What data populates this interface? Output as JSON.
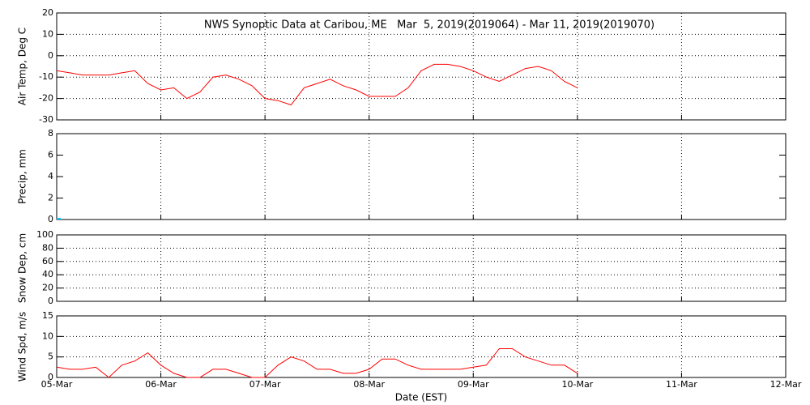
{
  "chart_data": [
    {
      "type": "line",
      "title": "NWS Synoptic Data at Caribou, ME   Mar  5, 2019(2019064) - Mar 11, 2019(2019070)",
      "y_label": "Air Temp, Deg C",
      "x": [
        0,
        3,
        6,
        9,
        12,
        15,
        18,
        21,
        24,
        27,
        30,
        33,
        36,
        39,
        42,
        45,
        48,
        51,
        54,
        57,
        60,
        63,
        66,
        69,
        72,
        75,
        78,
        81,
        84,
        87,
        90,
        93,
        96,
        99,
        102,
        105,
        108,
        111,
        114,
        117,
        120
      ],
      "series": [
        {
          "color": "#ff0000",
          "values": [
            -7,
            -8,
            -9,
            -9,
            -9,
            -8,
            -7,
            -13,
            -16,
            -15,
            -20,
            -17,
            -10,
            -9,
            -11,
            -14,
            -20,
            -21,
            -23,
            -15,
            -13,
            -11,
            -14,
            -16,
            -19,
            -19,
            -19,
            -15,
            -7,
            -4,
            -4,
            -5,
            -7,
            -10,
            -12,
            -9,
            -6,
            -5,
            -7,
            -12,
            -15
          ]
        }
      ],
      "xlim": [
        0,
        168
      ],
      "xticks": [
        0,
        24,
        48,
        72,
        96,
        120,
        144,
        168
      ],
      "ylim": [
        -30,
        20
      ],
      "yticks": [
        -30,
        -20,
        -10,
        0,
        10,
        20
      ],
      "grid": "both"
    },
    {
      "type": "line",
      "y_label": "Precip, mm",
      "x": [
        0
      ],
      "series": [
        {
          "color": "#00c8ff",
          "values": [
            0
          ]
        }
      ],
      "xlim": [
        0,
        168
      ],
      "xticks": [
        0,
        24,
        48,
        72,
        96,
        120,
        144,
        168
      ],
      "ylim": [
        0,
        8
      ],
      "yticks": [
        0,
        2,
        4,
        6,
        8
      ],
      "grid": "x"
    },
    {
      "type": "line",
      "y_label": "Snow Dep, cm",
      "x": [],
      "series": [],
      "xlim": [
        0,
        168
      ],
      "xticks": [
        0,
        24,
        48,
        72,
        96,
        120,
        144,
        168
      ],
      "ylim": [
        0,
        100
      ],
      "yticks": [
        0,
        20,
        40,
        60,
        80,
        100
      ],
      "grid": "both"
    },
    {
      "type": "line",
      "y_label": "Wind Spd, m/s",
      "x_label": "Date (EST)",
      "x": [
        0,
        3,
        6,
        9,
        12,
        15,
        18,
        21,
        24,
        27,
        30,
        33,
        36,
        39,
        42,
        45,
        48,
        51,
        54,
        57,
        60,
        63,
        66,
        69,
        72,
        75,
        78,
        81,
        84,
        87,
        90,
        93,
        96,
        99,
        102,
        105,
        108,
        111,
        114,
        117,
        120
      ],
      "series": [
        {
          "color": "#ff0000",
          "values": [
            2.5,
            2,
            2,
            2.5,
            0,
            3,
            4,
            6,
            3,
            1,
            0,
            0,
            2,
            2,
            1,
            0,
            0,
            3,
            5,
            4,
            2,
            2,
            1,
            1,
            2,
            4.5,
            4.5,
            3,
            2,
            2,
            2,
            2,
            2.5,
            3,
            7,
            7,
            5,
            4,
            3,
            3,
            1
          ]
        }
      ],
      "xlim": [
        0,
        168
      ],
      "xticks": [
        {
          "value": 0,
          "label": "05-Mar"
        },
        {
          "value": 24,
          "label": "06-Mar"
        },
        {
          "value": 48,
          "label": "07-Mar"
        },
        {
          "value": 72,
          "label": "08-Mar"
        },
        {
          "value": 96,
          "label": "09-Mar"
        },
        {
          "value": 120,
          "label": "10-Mar"
        },
        {
          "value": 144,
          "label": "11-Mar"
        },
        {
          "value": 168,
          "label": "12-Mar"
        }
      ],
      "ylim": [
        0,
        15
      ],
      "yticks": [
        0,
        5,
        10,
        15
      ],
      "grid": "both"
    }
  ]
}
